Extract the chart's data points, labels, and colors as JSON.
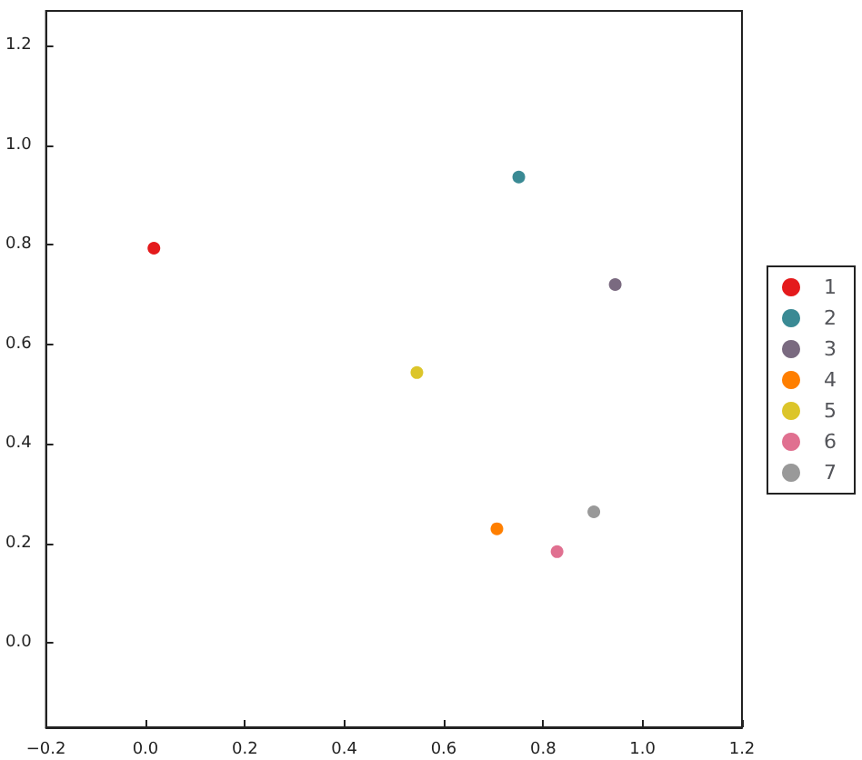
{
  "chart_data": {
    "type": "scatter",
    "series": [
      {
        "name": "1",
        "color": "#e41a1c",
        "x": [
          0.017
        ],
        "values": [
          0.793
        ]
      },
      {
        "name": "2",
        "color": "#3a8a94",
        "x": [
          0.751
        ],
        "values": [
          0.936
        ]
      },
      {
        "name": "3",
        "color": "#7a6a80",
        "x": [
          0.945
        ],
        "values": [
          0.72
        ]
      },
      {
        "name": "4",
        "color": "#ff7f00",
        "x": [
          0.707
        ],
        "values": [
          0.229
        ]
      },
      {
        "name": "5",
        "color": "#dcc52a",
        "x": [
          0.546
        ],
        "values": [
          0.543
        ]
      },
      {
        "name": "6",
        "color": "#e07090",
        "x": [
          0.828
        ],
        "values": [
          0.183
        ]
      },
      {
        "name": "7",
        "color": "#999999",
        "x": [
          0.902
        ],
        "values": [
          0.263
        ]
      }
    ],
    "xlim": [
      -0.2,
      1.2
    ],
    "xticks": [
      {
        "value": -0.2,
        "label": "−0.2"
      },
      {
        "value": 0,
        "label": "0.0"
      },
      0.2,
      0.4,
      0.6,
      0.8,
      {
        "value": 1,
        "label": "1.0"
      },
      1.2
    ],
    "ylim": [
      -0.17,
      1.27
    ],
    "yticks": [
      {
        "value": 0,
        "label": "0.0"
      },
      0.2,
      0.4,
      0.6,
      0.8,
      {
        "value": 1,
        "label": "1.0"
      },
      1.2
    ],
    "marker": "circle",
    "grid": false,
    "legend": "right"
  }
}
